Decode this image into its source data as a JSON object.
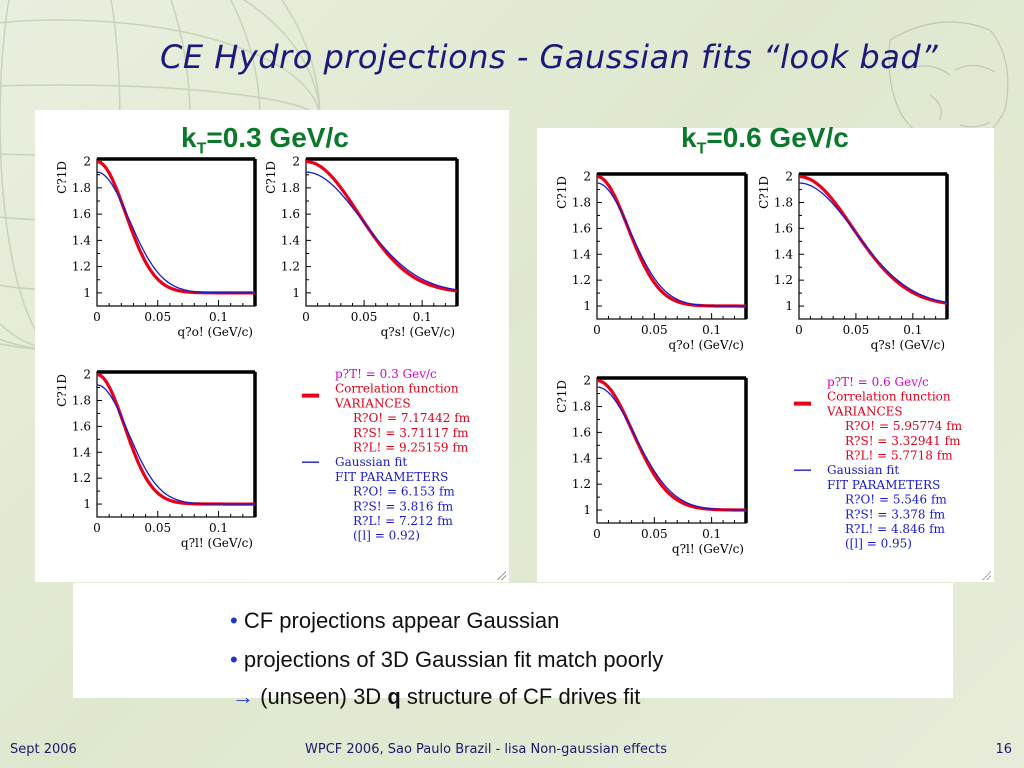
{
  "slide": {
    "title": "CE Hydro projections - Gaussian fits “look bad”",
    "footer_left": "Sept 2006",
    "footer_center": "WPCF 2006, Sao Paulo Brazil - lisa Non-gaussian effects",
    "footer_right": "16"
  },
  "panels": [
    {
      "kt_main": "k",
      "kt_sub": "T",
      "kt_rest": "=0.3 GeV/c",
      "legend": {
        "lines": [
          {
            "text": "p?T! = 0.3 Gev/c",
            "color": "#d400d4"
          },
          {
            "text": "Correlation function",
            "color": "#e0001a"
          },
          {
            "text": "VARIANCES",
            "color": "#e0001a"
          },
          {
            "text": "R?O! = 7.17442 fm",
            "color": "#e0001a"
          },
          {
            "text": "R?S! = 3.71117 fm",
            "color": "#e0001a"
          },
          {
            "text": "R?L! = 9.25159 fm",
            "color": "#e0001a"
          },
          {
            "text": "Gaussian fit",
            "color": "#1a1acc"
          },
          {
            "text": "FIT PARAMETERS",
            "color": "#1a1acc"
          },
          {
            "text": "R?O! = 6.153 fm",
            "color": "#1a1acc"
          },
          {
            "text": "R?S! = 3.816 fm",
            "color": "#1a1acc"
          },
          {
            "text": "R?L! = 7.212 fm",
            "color": "#1a1acc"
          },
          {
            "text": "([l] = 0.92)",
            "color": "#1a1acc"
          }
        ]
      }
    },
    {
      "kt_main": "k",
      "kt_sub": "T",
      "kt_rest": "=0.6 GeV/c",
      "legend": {
        "lines": [
          {
            "text": "p?T! = 0.6 Gev/c",
            "color": "#d400d4"
          },
          {
            "text": "Correlation function",
            "color": "#e0001a"
          },
          {
            "text": "VARIANCES",
            "color": "#e0001a"
          },
          {
            "text": "R?O! = 5.95774 fm",
            "color": "#e0001a"
          },
          {
            "text": "R?S! = 3.32941 fm",
            "color": "#e0001a"
          },
          {
            "text": "R?L! = 5.7718 fm",
            "color": "#e0001a"
          },
          {
            "text": "Gaussian fit",
            "color": "#1a1acc"
          },
          {
            "text": "FIT PARAMETERS",
            "color": "#1a1acc"
          },
          {
            "text": "R?O! = 5.546 fm",
            "color": "#1a1acc"
          },
          {
            "text": "R?S! = 3.378 fm",
            "color": "#1a1acc"
          },
          {
            "text": "R?L! = 4.846 fm",
            "color": "#1a1acc"
          },
          {
            "text": "([l] = 0.95)",
            "color": "#1a1acc"
          }
        ]
      }
    }
  ],
  "bullets": [
    {
      "marker": "•",
      "text": "CF projections appear Gaussian"
    },
    {
      "marker": "•",
      "text": "projections of 3D Gaussian fit match poorly"
    },
    {
      "marker": "→",
      "pre": "(unseen) 3D ",
      "bold": "q",
      "post": " structure of CF drives fit"
    }
  ],
  "chart_data": [
    {
      "type": "line",
      "panel": 0,
      "ylabel": "C?1D",
      "xlabel": "q?o! (GeV/c)",
      "xlim": [
        0,
        0.13
      ],
      "ylim": [
        0.9,
        2.02
      ],
      "xticks": [
        "0",
        "0.05",
        "0.1"
      ],
      "yticks": [
        "1",
        "1.2",
        "1.4",
        "1.6",
        "1.8",
        "2"
      ],
      "series": [
        {
          "name": "Correlation function",
          "color": "#e8001a",
          "lambda": 1.0,
          "sigma": 0.0235
        },
        {
          "name": "Gaussian fit",
          "color": "#1a1acc",
          "lambda": 0.92,
          "sigma": 0.0265
        }
      ]
    },
    {
      "type": "line",
      "panel": 0,
      "ylabel": "C?1D",
      "xlabel": "q?s! (GeV/c)",
      "xlim": [
        0,
        0.13
      ],
      "ylim": [
        0.9,
        2.02
      ],
      "xticks": [
        "0",
        "0.05",
        "0.1"
      ],
      "yticks": [
        "1",
        "1.2",
        "1.4",
        "1.6",
        "1.8",
        "2"
      ],
      "series": [
        {
          "name": "Correlation function",
          "color": "#e8001a",
          "lambda": 1.0,
          "sigma": 0.045
        },
        {
          "name": "Gaussian fit",
          "color": "#1a1acc",
          "lambda": 0.92,
          "sigma": 0.048
        }
      ]
    },
    {
      "type": "line",
      "panel": 0,
      "ylabel": "C?1D",
      "xlabel": "q?l! (GeV/c)",
      "xlim": [
        0,
        0.13
      ],
      "ylim": [
        0.9,
        2.02
      ],
      "xticks": [
        "0",
        "0.05",
        "0.1"
      ],
      "yticks": [
        "1",
        "1.2",
        "1.4",
        "1.6",
        "1.8",
        "2"
      ],
      "series": [
        {
          "name": "Correlation function",
          "color": "#e8001a",
          "lambda": 1.0,
          "sigma": 0.0225
        },
        {
          "name": "Gaussian fit",
          "color": "#1a1acc",
          "lambda": 0.92,
          "sigma": 0.0255
        }
      ]
    },
    {
      "type": "line",
      "panel": 1,
      "ylabel": "C?1D",
      "xlabel": "q?o! (GeV/c)",
      "xlim": [
        0,
        0.13
      ],
      "ylim": [
        0.9,
        2.02
      ],
      "xticks": [
        "0",
        "0.05",
        "0.1"
      ],
      "yticks": [
        "1",
        "1.2",
        "1.4",
        "1.6",
        "1.8",
        "2"
      ],
      "series": [
        {
          "name": "Correlation function",
          "color": "#e8001a",
          "lambda": 1.0,
          "sigma": 0.027
        },
        {
          "name": "Gaussian fit",
          "color": "#1a1acc",
          "lambda": 0.95,
          "sigma": 0.029
        }
      ]
    },
    {
      "type": "line",
      "panel": 1,
      "ylabel": "C?1D",
      "xlabel": "q?s! (GeV/c)",
      "xlim": [
        0,
        0.13
      ],
      "ylim": [
        0.9,
        2.02
      ],
      "xticks": [
        "0",
        "0.05",
        "0.1"
      ],
      "yticks": [
        "1",
        "1.2",
        "1.4",
        "1.6",
        "1.8",
        "2"
      ],
      "series": [
        {
          "name": "Correlation function",
          "color": "#e8001a",
          "lambda": 1.0,
          "sigma": 0.047
        },
        {
          "name": "Gaussian fit",
          "color": "#1a1acc",
          "lambda": 0.95,
          "sigma": 0.049
        }
      ]
    },
    {
      "type": "line",
      "panel": 1,
      "ylabel": "C?1D",
      "xlabel": "q?l! (GeV/c)",
      "xlim": [
        0,
        0.13
      ],
      "ylim": [
        0.9,
        2.02
      ],
      "xticks": [
        "0",
        "0.05",
        "0.1"
      ],
      "yticks": [
        "1",
        "1.2",
        "1.4",
        "1.6",
        "1.8",
        "2"
      ],
      "series": [
        {
          "name": "Correlation function",
          "color": "#e8001a",
          "lambda": 1.0,
          "sigma": 0.031
        },
        {
          "name": "Gaussian fit",
          "color": "#1a1acc",
          "lambda": 0.95,
          "sigma": 0.033
        }
      ]
    }
  ]
}
